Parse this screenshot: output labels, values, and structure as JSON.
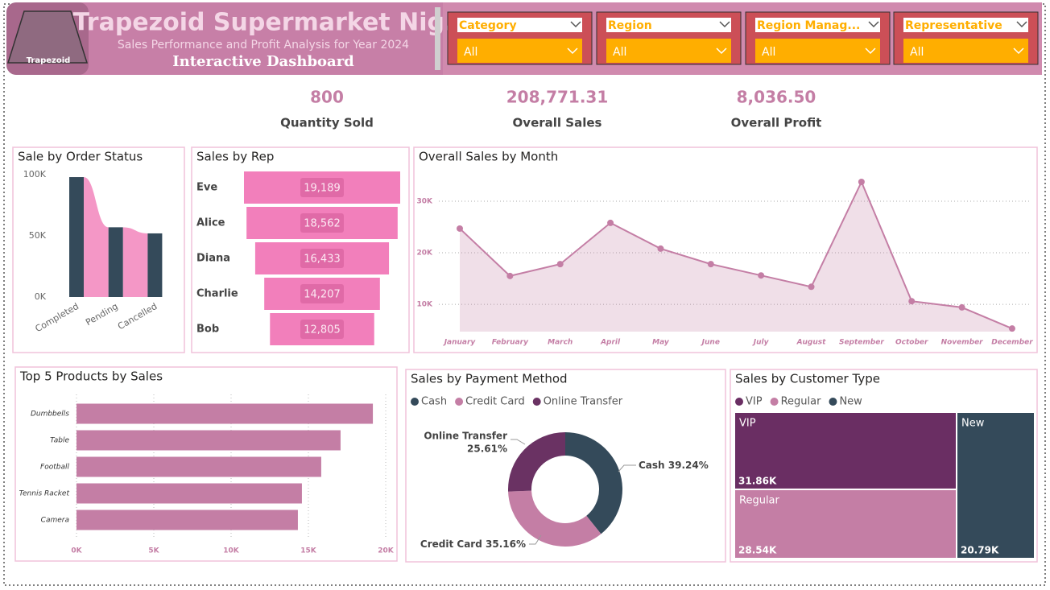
{
  "header": {
    "logo": "Trapezoid",
    "title": "Trapezoid Supermarket Nig.",
    "subtitle": "Sales Performance and Profit Analysis for Year 2024",
    "tagline": "Interactive Dashboard"
  },
  "filters": [
    {
      "label": "Category",
      "value": "All"
    },
    {
      "label": "Region",
      "value": "All"
    },
    {
      "label": "Region Manag...",
      "value": "All"
    },
    {
      "label": "Representative",
      "value": "All"
    }
  ],
  "kpis": [
    {
      "value": "800",
      "label": "Quantity Sold"
    },
    {
      "value": "208,771.31",
      "label": "Overall Sales"
    },
    {
      "value": "8,036.50",
      "label": "Overall Profit"
    }
  ],
  "chart_data": [
    {
      "type": "ribbon",
      "title": "Sale by Order Status",
      "categories": [
        "Completed",
        "Pending",
        "Cancelled"
      ],
      "values": [
        98000,
        57000,
        52000
      ],
      "color": "#344a5a",
      "ribbon_color": "#f497c6",
      "ylim": [
        0,
        100000
      ],
      "yticks": [
        {
          "value": 0,
          "label": "0K"
        },
        {
          "value": 50000,
          "label": "50K"
        },
        {
          "value": 100000,
          "label": "100K"
        }
      ]
    },
    {
      "type": "funnel",
      "title": "Sales by Rep",
      "categories": [
        "Eve",
        "Alice",
        "Diana",
        "Charlie",
        "Bob"
      ],
      "values": [
        19189,
        18562,
        16433,
        14207,
        12805
      ],
      "value_labels": [
        "19,189",
        "18,562",
        "16,433",
        "14,207",
        "12,805"
      ],
      "color": "#f27fbb"
    },
    {
      "type": "area",
      "title": "Overall Sales by Month",
      "categories": [
        "January",
        "February",
        "March",
        "April",
        "May",
        "June",
        "July",
        "August",
        "September",
        "October",
        "November",
        "December"
      ],
      "values": [
        24700,
        15500,
        17800,
        25800,
        20800,
        17800,
        15600,
        13400,
        33750,
        10600,
        9400,
        5300
      ],
      "color": "#c47ea5",
      "grid": true,
      "ylim": [
        4700,
        35000
      ],
      "yticks": [
        {
          "value": 10000,
          "label": "10K"
        },
        {
          "value": 20000,
          "label": "20K"
        },
        {
          "value": 30000,
          "label": "30K"
        }
      ]
    },
    {
      "type": "bar",
      "horizontal": true,
      "title": "Top 5 Products by Sales",
      "categories": [
        "Dumbbells",
        "Table",
        "Football",
        "Tennis Racket",
        "Camera"
      ],
      "values": [
        19170,
        17080,
        15830,
        14580,
        14320
      ],
      "color": "#c47ea5",
      "grid": true,
      "xlim": [
        0,
        20000
      ],
      "xticks": [
        {
          "value": 0,
          "label": "0K"
        },
        {
          "value": 5000,
          "label": "5K"
        },
        {
          "value": 10000,
          "label": "10K"
        },
        {
          "value": 15000,
          "label": "15K"
        },
        {
          "value": 20000,
          "label": "20K"
        }
      ]
    },
    {
      "type": "pie",
      "donut": true,
      "title": "Sales by Payment Method",
      "categories": [
        "Cash",
        "Credit Card",
        "Online Transfer"
      ],
      "values": [
        39.24,
        35.16,
        25.61
      ],
      "value_labels": [
        "39.24%",
        "35.16%",
        "25.61%"
      ],
      "colors": [
        "#344a5a",
        "#c47ea5",
        "#6a3263"
      ],
      "legend": "top-left"
    },
    {
      "type": "treemap",
      "title": "Sales by Customer Type",
      "categories": [
        "VIP",
        "Regular",
        "New"
      ],
      "values": [
        31860,
        28540,
        20790
      ],
      "value_labels": [
        "31.86K",
        "28.54K",
        "20.79K"
      ],
      "colors": [
        "#6a2e63",
        "#c47ea5",
        "#344a5a"
      ],
      "legend": "top-left"
    }
  ]
}
